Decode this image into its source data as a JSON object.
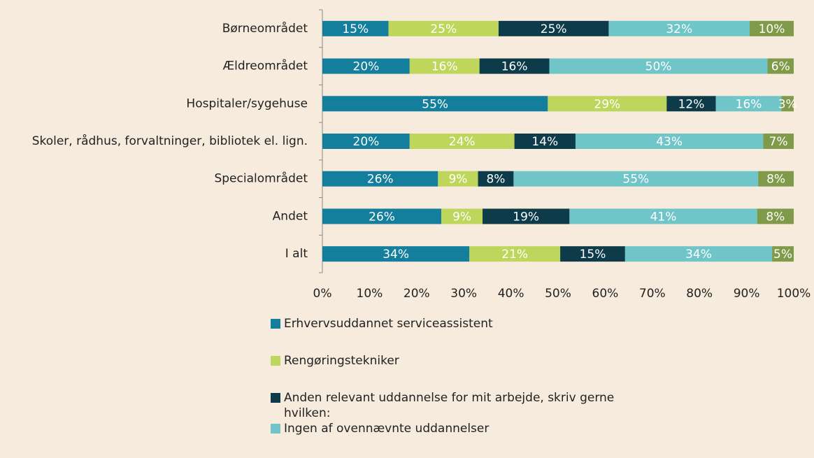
{
  "chart_data": {
    "type": "bar",
    "orientation": "horizontal",
    "stacking": "percent",
    "categories": [
      "Børneområdet",
      "Ældreområdet",
      "Hospitaler/sygehuse",
      "Skoler, rådhus, forvaltninger, bibliotek el. lign.",
      "Specialområdet",
      "Andet",
      "I alt"
    ],
    "series": [
      {
        "name": "Erhvervsuddannet serviceassistent",
        "color": "#137f9c",
        "values": [
          15,
          20,
          55,
          20,
          26,
          26,
          34
        ],
        "value_labels": [
          "15%",
          "20%",
          "55%",
          "20%",
          "26%",
          "26%",
          "34%"
        ]
      },
      {
        "name": "Rengøringstekniker",
        "color": "#bdd65b",
        "values": [
          25,
          16,
          29,
          24,
          9,
          9,
          21
        ],
        "value_labels": [
          "25%",
          "16%",
          "29%",
          "24%",
          "9%",
          "9%",
          "21%"
        ]
      },
      {
        "name": "Anden relevant uddannelse for mit arbejde, skriv gerne hvilken:",
        "color": "#0d3b49",
        "values": [
          25,
          16,
          12,
          14,
          8,
          19,
          15
        ],
        "value_labels": [
          "25%",
          "16%",
          "12%",
          "14%",
          "8%",
          "19%",
          "15%"
        ]
      },
      {
        "name": "Ingen af ovennævnte uddannelser",
        "color": "#6fc5c8",
        "values": [
          32,
          50,
          16,
          43,
          55,
          41,
          34
        ],
        "value_labels": [
          "32%",
          "50%",
          "16%",
          "43%",
          "55%",
          "41%",
          "34%"
        ]
      },
      {
        "color": "#7f9a48",
        "values": [
          10,
          6,
          3,
          7,
          8,
          8,
          5
        ],
        "value_labels": [
          "10%",
          "6%",
          "3%",
          "7%",
          "8%",
          "8%",
          "5%"
        ]
      }
    ],
    "xlim": [
      0,
      100
    ],
    "xticks": [
      {
        "value": 0,
        "label": "0%"
      },
      {
        "value": 10,
        "label": "10%"
      },
      {
        "value": 20,
        "label": "20%"
      },
      {
        "value": 30,
        "label": "30%"
      },
      {
        "value": 40,
        "label": "40%"
      },
      {
        "value": 50,
        "label": "50%"
      },
      {
        "value": 60,
        "label": "60%"
      },
      {
        "value": 70,
        "label": "70%"
      },
      {
        "value": 80,
        "label": "80%"
      },
      {
        "value": 90,
        "label": "90%"
      },
      {
        "value": 100,
        "label": "100%"
      }
    ],
    "grid": false,
    "legend": "bottom"
  }
}
